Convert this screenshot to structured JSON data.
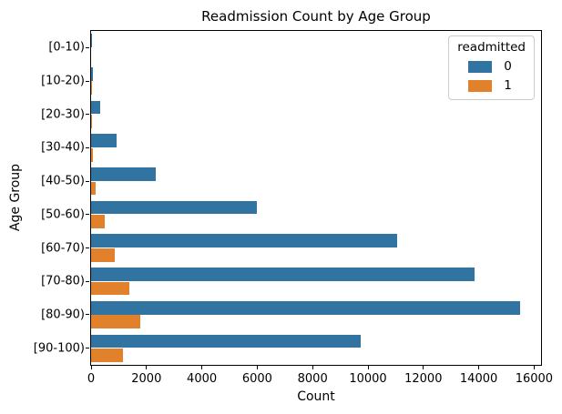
{
  "chart_data": {
    "type": "bar",
    "orientation": "horizontal",
    "title": "Readmission Count by Age Group",
    "xlabel": "Count",
    "ylabel": "Age Group",
    "xlim": [
      0,
      16250
    ],
    "xticks": [
      0,
      2000,
      4000,
      6000,
      8000,
      10000,
      12000,
      14000,
      16000
    ],
    "grid": false,
    "categories": [
      "[0-10)",
      "[10-20)",
      "[20-30)",
      "[30-40)",
      "[40-50)",
      "[50-60)",
      "[60-70)",
      "[70-80)",
      "[80-90)",
      "[90-100)"
    ],
    "series": [
      {
        "name": "0",
        "color": "#3274a1",
        "values": [
          10,
          60,
          330,
          910,
          2330,
          6000,
          11050,
          13850,
          15500,
          9750
        ]
      },
      {
        "name": "1",
        "color": "#e1812c",
        "values": [
          2,
          10,
          25,
          65,
          180,
          490,
          855,
          1370,
          1775,
          1160
        ]
      }
    ],
    "legend": {
      "title": "readmitted",
      "position": "upper right",
      "entries": [
        "0",
        "1"
      ]
    },
    "colors": {
      "readmitted_0": "#3274a1",
      "readmitted_1": "#e1812c",
      "axis": "#000000",
      "legend_border": "#cccccc",
      "background": "#ffffff"
    }
  }
}
